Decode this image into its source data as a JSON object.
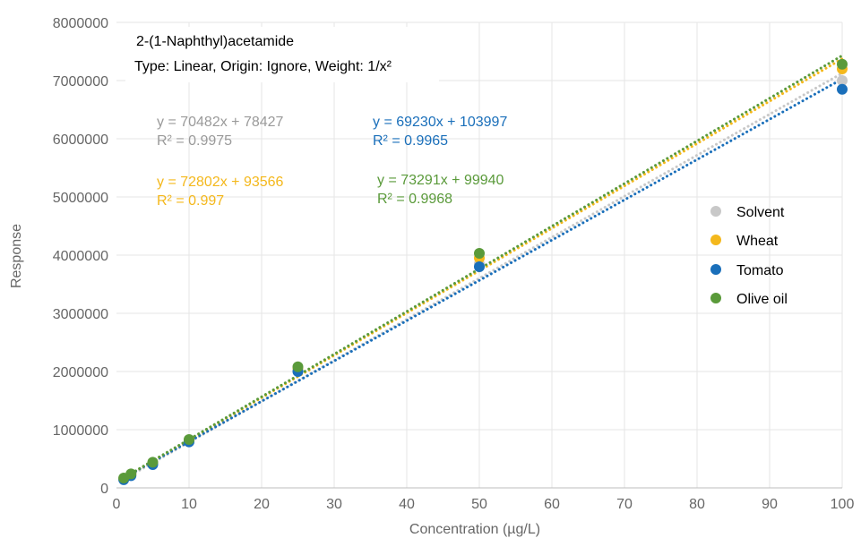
{
  "chart_data": {
    "type": "scatter",
    "title": "2-(1-Naphthyl)acetamide",
    "subtitle": "Type: Linear, Origin: Ignore, Weight: 1/x²",
    "xlabel": "Concentration (µg/L)",
    "ylabel": "Response",
    "xlim": [
      0,
      100
    ],
    "ylim": [
      0,
      8000000
    ],
    "x_ticks": [
      "0",
      "10",
      "20",
      "30",
      "40",
      "50",
      "60",
      "70",
      "80",
      "90",
      "100"
    ],
    "y_ticks": [
      "0",
      "1000000",
      "2000000",
      "3000000",
      "4000000",
      "5000000",
      "6000000",
      "7000000",
      "8000000"
    ],
    "grid": true,
    "legend_position": "right",
    "series": [
      {
        "name": "Solvent",
        "color": "#c8c8c8",
        "slope": 70482,
        "intercept": 78427,
        "equation": "y = 70482x + 78427",
        "r2": "R² = 0.9975",
        "points": [
          [
            1,
            150000
          ],
          [
            2,
            220000
          ],
          [
            5,
            420000
          ],
          [
            10,
            800000
          ],
          [
            25,
            2000000
          ],
          [
            50,
            3850000
          ],
          [
            100,
            7000000
          ]
        ]
      },
      {
        "name": "Wheat",
        "color": "#f4b81c",
        "slope": 72802,
        "intercept": 93566,
        "equation": "y = 72802x + 93566",
        "r2": "R² = 0.997",
        "points": [
          [
            1,
            160000
          ],
          [
            2,
            230000
          ],
          [
            5,
            430000
          ],
          [
            10,
            820000
          ],
          [
            25,
            2050000
          ],
          [
            50,
            3950000
          ],
          [
            100,
            7200000
          ]
        ]
      },
      {
        "name": "Tomato",
        "color": "#1a6fba",
        "slope": 69230,
        "intercept": 103997,
        "equation": "y = 69230x + 103997",
        "r2": "R² = 0.9965",
        "points": [
          [
            1,
            140000
          ],
          [
            2,
            210000
          ],
          [
            5,
            400000
          ],
          [
            10,
            790000
          ],
          [
            25,
            2000000
          ],
          [
            50,
            3800000
          ],
          [
            100,
            6850000
          ]
        ]
      },
      {
        "name": "Olive oil",
        "color": "#5a9a3a",
        "slope": 73291,
        "intercept": 99940,
        "equation": "y = 73291x + 99940",
        "r2": "R² = 0.9968",
        "points": [
          [
            1,
            170000
          ],
          [
            2,
            240000
          ],
          [
            5,
            440000
          ],
          [
            10,
            830000
          ],
          [
            25,
            2080000
          ],
          [
            50,
            4030000
          ],
          [
            100,
            7280000
          ]
        ]
      }
    ]
  }
}
